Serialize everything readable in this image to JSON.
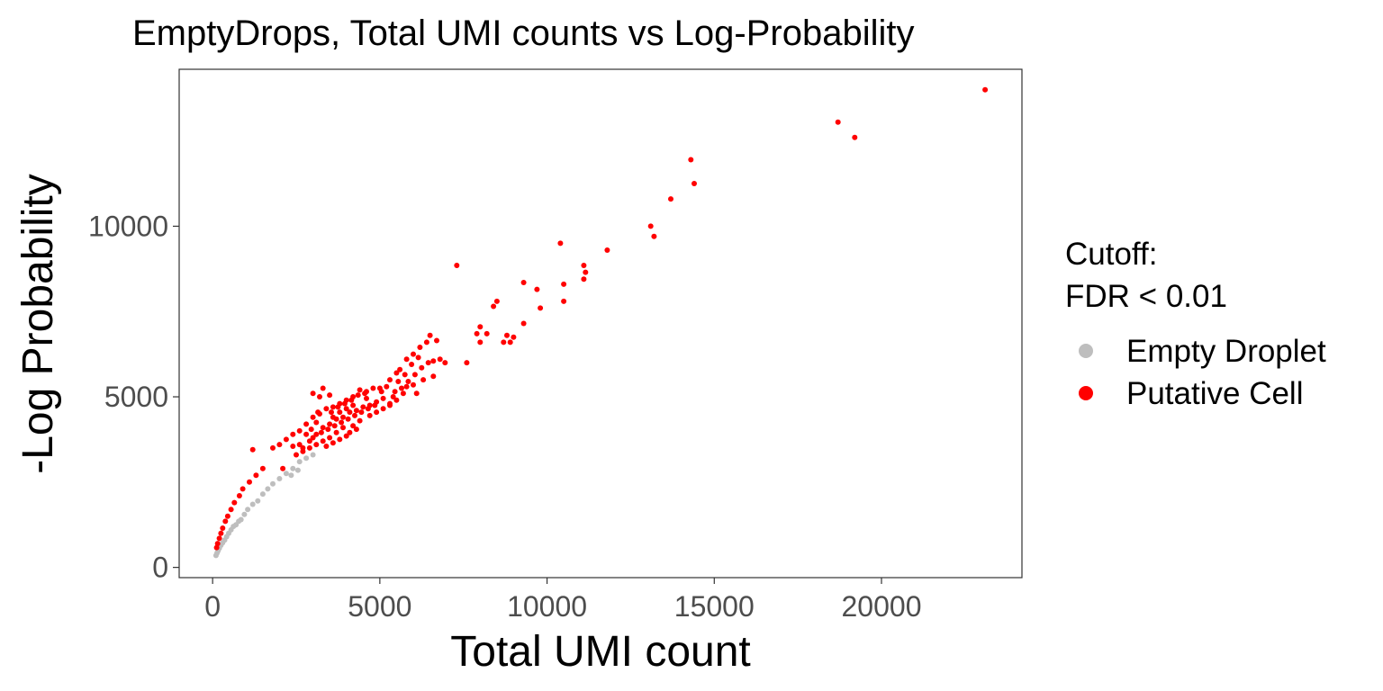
{
  "chart_data": {
    "type": "scatter",
    "title": "EmptyDrops, Total UMI counts vs Log-Probability",
    "xlabel": "Total UMI count",
    "ylabel": "-Log Probability",
    "xlim": [
      -1000,
      24200
    ],
    "ylim": [
      -300,
      14600
    ],
    "xticks": [
      0,
      5000,
      10000,
      15000,
      20000
    ],
    "yticks": [
      0,
      5000,
      10000
    ],
    "grid": false,
    "legend": {
      "title": "Cutoff:\nFDR < 0.01",
      "placement": "right"
    },
    "series": [
      {
        "name": "Empty Droplet",
        "color": "#bebebe",
        "points": [
          [
            100,
            350
          ],
          [
            130,
            420
          ],
          [
            160,
            480
          ],
          [
            200,
            560
          ],
          [
            250,
            650
          ],
          [
            300,
            720
          ],
          [
            360,
            800
          ],
          [
            420,
            900
          ],
          [
            480,
            1000
          ],
          [
            550,
            1100
          ],
          [
            620,
            1200
          ],
          [
            700,
            1250
          ],
          [
            780,
            1350
          ],
          [
            850,
            1400
          ],
          [
            950,
            1550
          ],
          [
            1050,
            1700
          ],
          [
            1200,
            1850
          ],
          [
            1350,
            1950
          ],
          [
            1500,
            2150
          ],
          [
            1650,
            2300
          ],
          [
            1800,
            2450
          ],
          [
            2000,
            2600
          ],
          [
            2200,
            2750
          ],
          [
            2400,
            2900
          ],
          [
            2600,
            3100
          ],
          [
            2800,
            3200
          ],
          [
            3000,
            3300
          ],
          [
            2550,
            2850
          ],
          [
            2350,
            2700
          ]
        ]
      },
      {
        "name": "Putative Cell",
        "color": "#ff0000",
        "points": [
          [
            23100,
            14000
          ],
          [
            18700,
            13050
          ],
          [
            19200,
            12600
          ],
          [
            14300,
            11950
          ],
          [
            14400,
            11250
          ],
          [
            13700,
            10800
          ],
          [
            13100,
            10000
          ],
          [
            13200,
            9700
          ],
          [
            11800,
            9300
          ],
          [
            10400,
            9500
          ],
          [
            11100,
            8850
          ],
          [
            11150,
            8650
          ],
          [
            11100,
            8450
          ],
          [
            10500,
            8300
          ],
          [
            9300,
            8350
          ],
          [
            9700,
            8150
          ],
          [
            9800,
            7600
          ],
          [
            7300,
            8850
          ],
          [
            8500,
            7800
          ],
          [
            8400,
            7650
          ],
          [
            10500,
            7800
          ],
          [
            9300,
            7150
          ],
          [
            8000,
            7050
          ],
          [
            7900,
            6850
          ],
          [
            8200,
            6850
          ],
          [
            8800,
            6800
          ],
          [
            9000,
            6750
          ],
          [
            8700,
            6600
          ],
          [
            8900,
            6600
          ],
          [
            8000,
            6600
          ],
          [
            7600,
            6000
          ],
          [
            6800,
            6100
          ],
          [
            6600,
            6050
          ],
          [
            6950,
            6000
          ],
          [
            6500,
            6800
          ],
          [
            6700,
            6650
          ],
          [
            6400,
            6600
          ],
          [
            6200,
            6450
          ],
          [
            6000,
            6250
          ],
          [
            5800,
            6100
          ],
          [
            5600,
            5800
          ],
          [
            5500,
            5700
          ],
          [
            5300,
            5500
          ],
          [
            5200,
            5300
          ],
          [
            5050,
            5150
          ],
          [
            4800,
            5250
          ],
          [
            4600,
            5150
          ],
          [
            4400,
            5200
          ],
          [
            4200,
            5000
          ],
          [
            4000,
            4900
          ],
          [
            3800,
            4800
          ],
          [
            3600,
            4700
          ],
          [
            3400,
            4650
          ],
          [
            3200,
            4500
          ],
          [
            3000,
            4400
          ],
          [
            2800,
            4200
          ],
          [
            2600,
            4000
          ],
          [
            2400,
            3900
          ],
          [
            2200,
            3750
          ],
          [
            2000,
            3600
          ],
          [
            1800,
            3500
          ],
          [
            1200,
            3450
          ],
          [
            1500,
            2900
          ],
          [
            1300,
            2700
          ],
          [
            1100,
            2500
          ],
          [
            900,
            2300
          ],
          [
            800,
            2100
          ],
          [
            650,
            1900
          ],
          [
            550,
            1700
          ],
          [
            450,
            1500
          ],
          [
            380,
            1350
          ],
          [
            300,
            1150
          ],
          [
            250,
            1000
          ],
          [
            200,
            850
          ],
          [
            150,
            700
          ],
          [
            120,
            580
          ],
          [
            2100,
            2900
          ],
          [
            2500,
            3300
          ],
          [
            2700,
            3500
          ],
          [
            2900,
            3700
          ],
          [
            3100,
            3900
          ],
          [
            3300,
            4100
          ],
          [
            3500,
            4200
          ],
          [
            3700,
            4350
          ],
          [
            3900,
            4400
          ],
          [
            4100,
            4550
          ],
          [
            4300,
            4600
          ],
          [
            4500,
            4700
          ],
          [
            4700,
            4750
          ],
          [
            4900,
            4850
          ],
          [
            5100,
            4950
          ],
          [
            5400,
            5000
          ],
          [
            5700,
            5100
          ],
          [
            6000,
            5350
          ],
          [
            6300,
            5500
          ],
          [
            6600,
            5600
          ],
          [
            6100,
            5100
          ],
          [
            5800,
            5300
          ],
          [
            5300,
            4800
          ],
          [
            4400,
            4300
          ],
          [
            4200,
            4150
          ],
          [
            3900,
            4100
          ],
          [
            3700,
            3950
          ],
          [
            3500,
            3800
          ],
          [
            3300,
            3700
          ],
          [
            3100,
            3600
          ],
          [
            2900,
            3500
          ],
          [
            2700,
            3400
          ],
          [
            3600,
            4400
          ],
          [
            3800,
            4550
          ],
          [
            4000,
            4650
          ],
          [
            4200,
            4750
          ],
          [
            4600,
            4950
          ],
          [
            5000,
            5250
          ],
          [
            3000,
            5100
          ],
          [
            3300,
            5250
          ],
          [
            3200,
            5000
          ],
          [
            3500,
            5050
          ],
          [
            3000,
            3800
          ],
          [
            2800,
            3900
          ],
          [
            3250,
            3950
          ],
          [
            3450,
            4050
          ],
          [
            3650,
            4150
          ],
          [
            3850,
            4250
          ],
          [
            4050,
            4350
          ],
          [
            4250,
            4450
          ],
          [
            4450,
            4550
          ],
          [
            4650,
            4650
          ],
          [
            4850,
            4750
          ],
          [
            3550,
            4550
          ],
          [
            3750,
            4700
          ],
          [
            3950,
            4800
          ],
          [
            4150,
            4900
          ],
          [
            4350,
            5050
          ],
          [
            4550,
            5100
          ],
          [
            3400,
            3550
          ],
          [
            3600,
            3650
          ],
          [
            3800,
            3750
          ],
          [
            4000,
            3850
          ],
          [
            4100,
            3950
          ],
          [
            4300,
            4050
          ],
          [
            2600,
            3600
          ],
          [
            2400,
            3550
          ],
          [
            3100,
            4250
          ],
          [
            2950,
            4050
          ],
          [
            3150,
            4550
          ],
          [
            4700,
            4450
          ],
          [
            4900,
            4550
          ],
          [
            5100,
            4650
          ],
          [
            5300,
            4750
          ],
          [
            5500,
            4900
          ],
          [
            5450,
            5150
          ],
          [
            5650,
            5250
          ],
          [
            5850,
            5450
          ],
          [
            6050,
            5650
          ],
          [
            6250,
            5850
          ],
          [
            6450,
            6000
          ],
          [
            6150,
            6150
          ],
          [
            5950,
            5950
          ],
          [
            5750,
            5650
          ],
          [
            5550,
            5450
          ]
        ]
      }
    ]
  }
}
